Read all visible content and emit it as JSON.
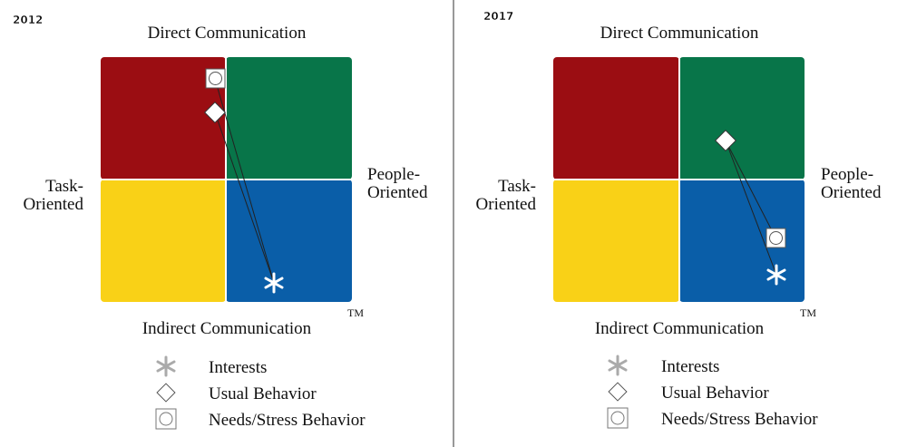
{
  "panels": [
    {
      "year": "2012",
      "top": "Direct Communication",
      "bottom": "Indirect Communication",
      "left": [
        "Task-",
        "Oriented"
      ],
      "right": [
        "People-",
        "Oriented"
      ],
      "tm": "TM",
      "legend": [
        "Interests",
        "Usual Behavior",
        "Needs/Stress Behavior"
      ]
    },
    {
      "year": "2017",
      "top": "Direct Communication",
      "bottom": "Indirect Communication",
      "left": [
        "Task-",
        "Oriented"
      ],
      "right": [
        "People-",
        "Oriented"
      ],
      "tm": "TM",
      "legend": [
        "Interests",
        "Usual Behavior",
        "Needs/Stress Behavior"
      ]
    }
  ]
}
